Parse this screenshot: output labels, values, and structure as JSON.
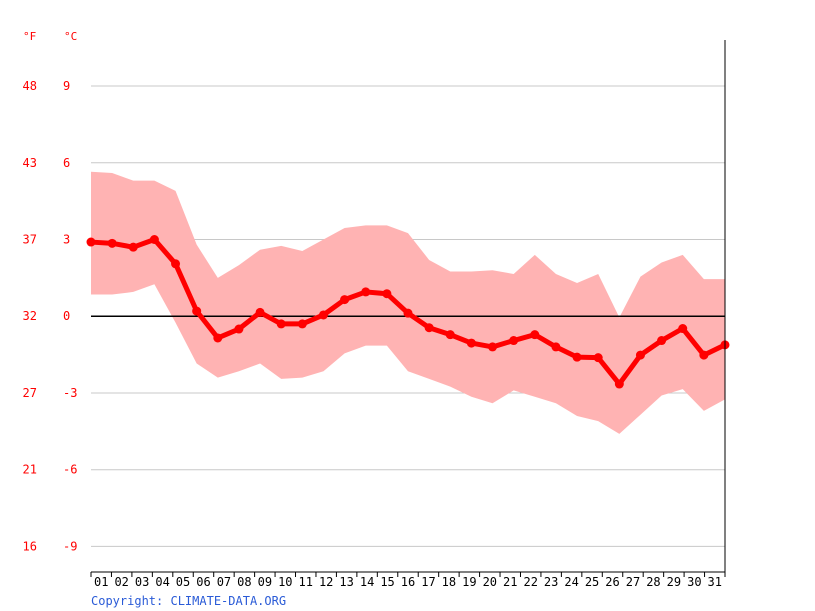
{
  "chart_data": {
    "type": "area",
    "title": "",
    "xlabel": "",
    "ylabel": "",
    "unit_labels": {
      "left": "°F",
      "right": "°C"
    },
    "x_tick_labels": [
      "01",
      "02",
      "03",
      "04",
      "05",
      "06",
      "07",
      "08",
      "09",
      "10",
      "11",
      "12",
      "13",
      "14",
      "15",
      "16",
      "17",
      "18",
      "19",
      "20",
      "21",
      "22",
      "23",
      "24",
      "25",
      "26",
      "27",
      "28",
      "29",
      "30",
      "31"
    ],
    "y_ticks_c": [
      9,
      6,
      3,
      0,
      -3,
      -6,
      -9
    ],
    "y_tick_labels_c": [
      "9",
      "6",
      "3",
      "0",
      "-3",
      "-6",
      "-9"
    ],
    "y_tick_labels_f": [
      "48",
      "43",
      "37",
      "32",
      "27",
      "21",
      "16"
    ],
    "ylim_c": [
      -10,
      10.8
    ],
    "grid": true,
    "series": [
      {
        "role": "mean",
        "color": "#ff0000",
        "values": [
          2.9,
          2.85,
          2.7,
          3.0,
          2.05,
          0.2,
          -0.85,
          -0.5,
          0.15,
          -0.3,
          -0.3,
          0.05,
          0.65,
          0.95,
          0.88,
          0.12,
          -0.45,
          -0.72,
          -1.05,
          -1.2,
          -0.95,
          -0.72,
          -1.2,
          -1.6,
          -1.62,
          -2.65,
          -1.52,
          -0.95,
          -0.48,
          -1.52,
          -1.12
        ]
      },
      {
        "role": "max",
        "color": "#ffb3b3",
        "values": [
          5.65,
          5.6,
          5.3,
          5.3,
          4.9,
          2.8,
          1.5,
          2.0,
          2.6,
          2.75,
          2.55,
          3.0,
          3.45,
          3.55,
          3.55,
          3.25,
          2.2,
          1.75,
          1.75,
          1.8,
          1.65,
          2.4,
          1.65,
          1.3,
          1.65,
          -0.05,
          1.55,
          2.1,
          2.4,
          1.45,
          1.45
        ]
      },
      {
        "role": "min",
        "color": "#ffb3b3",
        "values": [
          0.85,
          0.85,
          0.95,
          1.25,
          -0.25,
          -1.85,
          -2.4,
          -2.15,
          -1.85,
          -2.45,
          -2.4,
          -2.15,
          -1.45,
          -1.15,
          -1.15,
          -2.15,
          -2.45,
          -2.75,
          -3.15,
          -3.4,
          -2.9,
          -3.15,
          -3.4,
          -3.9,
          -4.1,
          -4.6,
          -3.85,
          -3.1,
          -2.85,
          -3.7,
          -3.25
        ]
      }
    ]
  },
  "copyright": "Copyright: CLIMATE-DATA.ORG"
}
